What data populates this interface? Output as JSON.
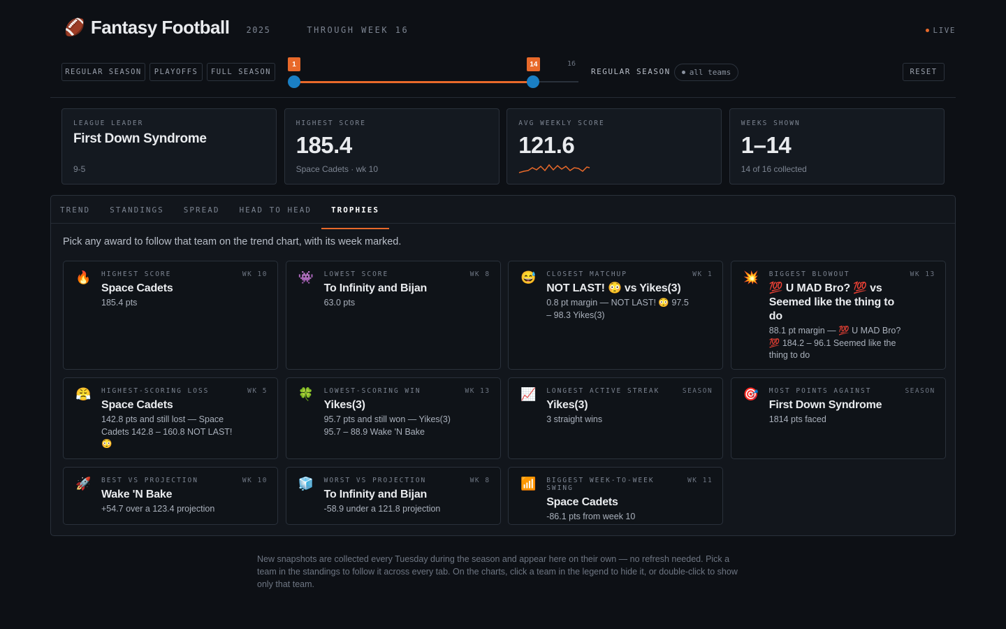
{
  "header": {
    "icon": "🏈",
    "title": "Fantasy Football",
    "year": "2025",
    "through": "THROUGH WEEK 16",
    "live": "LIVE"
  },
  "filters": {
    "buttons": [
      "REGULAR SEASON",
      "PLAYOFFS",
      "FULL SEASON"
    ],
    "slider": {
      "from": 1,
      "to": 14,
      "max": 16
    },
    "mode": "REGULAR SEASON",
    "teams": "all teams",
    "reset": "RESET"
  },
  "stats": [
    {
      "label": "LEAGUE LEADER",
      "value": "First Down Syndrome",
      "note": "9-5"
    },
    {
      "label": "HIGHEST SCORE",
      "value": "185.4",
      "note": "Space Cadets · wk 10"
    },
    {
      "label": "AVG WEEKLY SCORE",
      "value": "121.6"
    },
    {
      "label": "WEEKS SHOWN",
      "value": "1–14",
      "note": "14 of 16 collected"
    }
  ],
  "tabs": {
    "items": [
      "TREND",
      "STANDINGS",
      "SPREAD",
      "HEAD TO HEAD",
      "TROPHIES"
    ],
    "active": 4
  },
  "trophies": {
    "intro": "Pick any award to follow that team on the trend chart, with its week marked.",
    "items": [
      {
        "icon": "🔥",
        "label": "HIGHEST SCORE",
        "tag": "WK 10",
        "team": "Space Cadets",
        "lines": [
          "185.4 pts"
        ]
      },
      {
        "icon": "👾",
        "label": "LOWEST SCORE",
        "tag": "WK 8",
        "team": "To Infinity and Bijan",
        "lines": [
          "63.0 pts"
        ]
      },
      {
        "icon": "😅",
        "label": "CLOSEST MATCHUP",
        "tag": "WK 1",
        "team": "NOT LAST! 😳 vs Yikes(3)",
        "lines": [
          "0.8 pt margin — NOT LAST! 😳",
          "97.5 – 98.3 Yikes(3)"
        ]
      },
      {
        "icon": "💥",
        "label": "BIGGEST BLOWOUT",
        "tag": "WK 13",
        "team": "💯 U MAD Bro? 💯 vs Seemed like the thing to do",
        "lines": [
          "88.1 pt margin — 💯 U MAD Bro? 💯",
          "184.2 – 96.1 Seemed like the thing to do"
        ]
      },
      {
        "icon": "😤",
        "label": "HIGHEST-SCORING LOSS",
        "tag": "WK 5",
        "team": "Space Cadets",
        "lines": [
          "142.8 pts and still lost — Space Cadets",
          "142.8 – 160.8 NOT LAST! 😳"
        ]
      },
      {
        "icon": "🍀",
        "label": "LOWEST-SCORING WIN",
        "tag": "WK 13",
        "team": "Yikes(3)",
        "lines": [
          "95.7 pts and still won — Yikes(3)",
          "95.7 – 88.9 Wake 'N Bake"
        ]
      },
      {
        "icon": "📈",
        "label": "LONGEST ACTIVE STREAK",
        "tag": "SEASON",
        "team": "Yikes(3)",
        "lines": [
          "3 straight wins"
        ]
      },
      {
        "icon": "🎯",
        "label": "MOST POINTS AGAINST",
        "tag": "SEASON",
        "team": "First Down Syndrome",
        "lines": [
          "1814 pts faced"
        ]
      },
      {
        "icon": "🚀",
        "label": "BEST VS PROJECTION",
        "tag": "WK 10",
        "team": "Wake 'N Bake",
        "lines": [
          "+54.7 over a 123.4 projection"
        ]
      },
      {
        "icon": "🧊",
        "label": "WORST VS PROJECTION",
        "tag": "WK 8",
        "team": "To Infinity and Bijan",
        "lines": [
          "-58.9 under a 121.8 projection"
        ]
      },
      {
        "icon": "📶",
        "label": "BIGGEST WEEK-TO-WEEK SWING",
        "tag": "WK 11",
        "team": "Space Cadets",
        "lines": [
          "-86.1 pts from week 10"
        ]
      }
    ]
  },
  "footer": "New snapshots are collected every Tuesday during the season and appear here on their own — no refresh needed. Pick a team in the standings to follow it across every tab. On the charts, click a team in the legend to hide it, or double-click to show only that team."
}
